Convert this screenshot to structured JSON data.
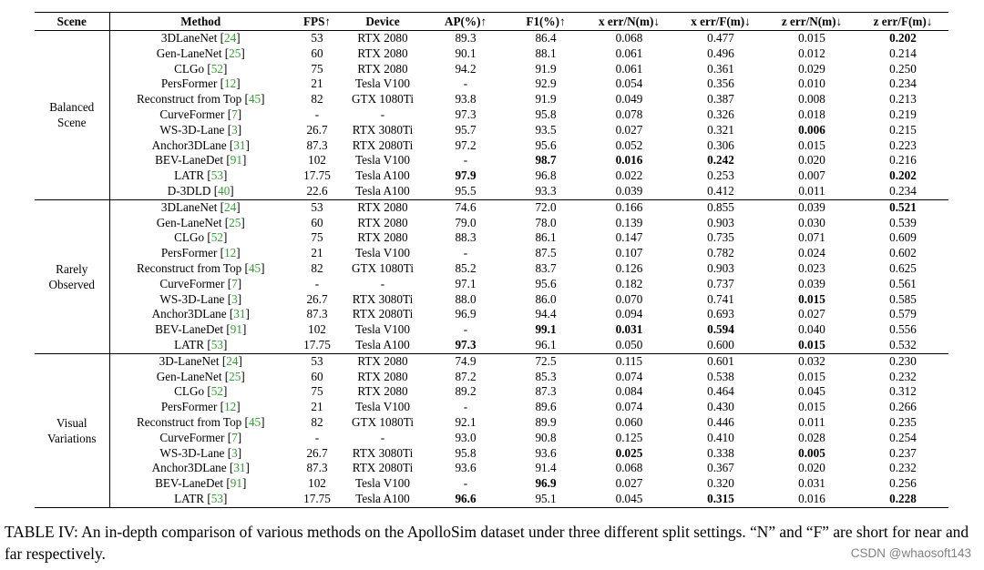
{
  "table": {
    "headers": [
      "Scene",
      "Method",
      "FPS↑",
      "Device",
      "AP(%)↑",
      "F1(%)↑",
      "x err/N(m)↓",
      "x err/F(m)↓",
      "z err/N(m)↓",
      "z err/F(m)↓"
    ],
    "bold_cells": "bold entries marked in rows via the 'bold' list of column indexes (2..9 of metric columns)",
    "groups": [
      {
        "scene": "Balanced\nScene",
        "rows": [
          {
            "method": "3DLaneNet",
            "ref": "24",
            "fps": "53",
            "device": "RTX 2080",
            "ap": "89.3",
            "f1": "86.4",
            "xn": "0.068",
            "xf": "0.477",
            "zn": "0.015",
            "zf": "0.202",
            "bold": [
              "zf"
            ]
          },
          {
            "method": "Gen-LaneNet",
            "ref": "25",
            "fps": "60",
            "device": "RTX 2080",
            "ap": "90.1",
            "f1": "88.1",
            "xn": "0.061",
            "xf": "0.496",
            "zn": "0.012",
            "zf": "0.214",
            "bold": []
          },
          {
            "method": "CLGo",
            "ref": "52",
            "fps": "75",
            "device": "RTX 2080",
            "ap": "94.2",
            "f1": "91.9",
            "xn": "0.061",
            "xf": "0.361",
            "zn": "0.029",
            "zf": "0.250",
            "bold": []
          },
          {
            "method": "PersFormer",
            "ref": "12",
            "fps": "21",
            "device": "Tesla V100",
            "ap": "-",
            "f1": "92.9",
            "xn": "0.054",
            "xf": "0.356",
            "zn": "0.010",
            "zf": "0.234",
            "bold": []
          },
          {
            "method": "Reconstruct from Top",
            "ref": "45",
            "fps": "82",
            "device": "GTX 1080Ti",
            "ap": "93.8",
            "f1": "91.9",
            "xn": "0.049",
            "xf": "0.387",
            "zn": "0.008",
            "zf": "0.213",
            "bold": []
          },
          {
            "method": "CurveFormer",
            "ref": "7",
            "fps": "-",
            "device": "-",
            "ap": "97.3",
            "f1": "95.8",
            "xn": "0.078",
            "xf": "0.326",
            "zn": "0.018",
            "zf": "0.219",
            "bold": []
          },
          {
            "method": "WS-3D-Lane",
            "ref": "3",
            "fps": "26.7",
            "device": "RTX 3080Ti",
            "ap": "95.7",
            "f1": "93.5",
            "xn": "0.027",
            "xf": "0.321",
            "zn": "0.006",
            "zf": "0.215",
            "bold": [
              "zn"
            ]
          },
          {
            "method": "Anchor3DLane",
            "ref": "31",
            "fps": "87.3",
            "device": "RTX 2080Ti",
            "ap": "97.2",
            "f1": "95.6",
            "xn": "0.052",
            "xf": "0.306",
            "zn": "0.015",
            "zf": "0.223",
            "bold": []
          },
          {
            "method": "BEV-LaneDet",
            "ref": "91",
            "fps": "102",
            "device": "Tesla V100",
            "ap": "-",
            "f1": "98.7",
            "xn": "0.016",
            "xf": "0.242",
            "zn": "0.020",
            "zf": "0.216",
            "bold": [
              "f1",
              "xn",
              "xf"
            ]
          },
          {
            "method": "LATR",
            "ref": "53",
            "fps": "17.75",
            "device": "Tesla A100",
            "ap": "97.9",
            "f1": "96.8",
            "xn": "0.022",
            "xf": "0.253",
            "zn": "0.007",
            "zf": "0.202",
            "bold": [
              "ap",
              "zf"
            ]
          },
          {
            "method": "D-3DLD",
            "ref": "40",
            "fps": "22.6",
            "device": "Tesla A100",
            "ap": "95.5",
            "f1": "93.3",
            "xn": "0.039",
            "xf": "0.412",
            "zn": "0.011",
            "zf": "0.234",
            "bold": []
          }
        ]
      },
      {
        "scene": "Rarely\nObserved",
        "rows": [
          {
            "method": "3DLaneNet",
            "ref": "24",
            "fps": "53",
            "device": "RTX 2080",
            "ap": "74.6",
            "f1": "72.0",
            "xn": "0.166",
            "xf": "0.855",
            "zn": "0.039",
            "zf": "0.521",
            "bold": [
              "zf"
            ]
          },
          {
            "method": "Gen-LaneNet",
            "ref": "25",
            "fps": "60",
            "device": "RTX 2080",
            "ap": "79.0",
            "f1": "78.0",
            "xn": "0.139",
            "xf": "0.903",
            "zn": "0.030",
            "zf": "0.539",
            "bold": []
          },
          {
            "method": "CLGo",
            "ref": "52",
            "fps": "75",
            "device": "RTX 2080",
            "ap": "88.3",
            "f1": "86.1",
            "xn": "0.147",
            "xf": "0.735",
            "zn": "0.071",
            "zf": "0.609",
            "bold": []
          },
          {
            "method": "PersFormer",
            "ref": "12",
            "fps": "21",
            "device": "Tesla V100",
            "ap": "-",
            "f1": "87.5",
            "xn": "0.107",
            "xf": "0.782",
            "zn": "0.024",
            "zf": "0.602",
            "bold": []
          },
          {
            "method": "Reconstruct from Top",
            "ref": "45",
            "fps": "82",
            "device": "GTX 1080Ti",
            "ap": "85.2",
            "f1": "83.7",
            "xn": "0.126",
            "xf": "0.903",
            "zn": "0.023",
            "zf": "0.625",
            "bold": []
          },
          {
            "method": "CurveFormer",
            "ref": "7",
            "fps": "-",
            "device": "-",
            "ap": "97.1",
            "f1": "95.6",
            "xn": "0.182",
            "xf": "0.737",
            "zn": "0.039",
            "zf": "0.561",
            "bold": []
          },
          {
            "method": "WS-3D-Lane",
            "ref": "3",
            "fps": "26.7",
            "device": "RTX 3080Ti",
            "ap": "88.0",
            "f1": "86.0",
            "xn": "0.070",
            "xf": "0.741",
            "zn": "0.015",
            "zf": "0.585",
            "bold": [
              "zn"
            ]
          },
          {
            "method": "Anchor3DLane",
            "ref": "31",
            "fps": "87.3",
            "device": "RTX 2080Ti",
            "ap": "96.9",
            "f1": "94.4",
            "xn": "0.094",
            "xf": "0.693",
            "zn": "0.027",
            "zf": "0.579",
            "bold": []
          },
          {
            "method": "BEV-LaneDet",
            "ref": "91",
            "fps": "102",
            "device": "Tesla V100",
            "ap": "-",
            "f1": "99.1",
            "xn": "0.031",
            "xf": "0.594",
            "zn": "0.040",
            "zf": "0.556",
            "bold": [
              "f1",
              "xn",
              "xf"
            ]
          },
          {
            "method": "LATR",
            "ref": "53",
            "fps": "17.75",
            "device": "Tesla A100",
            "ap": "97.3",
            "f1": "96.1",
            "xn": "0.050",
            "xf": "0.600",
            "zn": "0.015",
            "zf": "0.532",
            "bold": [
              "ap",
              "zn"
            ]
          }
        ]
      },
      {
        "scene": "Visual\nVariations",
        "rows": [
          {
            "method": "3D-LaneNet",
            "ref": "24",
            "fps": "53",
            "device": "RTX 2080",
            "ap": "74.9",
            "f1": "72.5",
            "xn": "0.115",
            "xf": "0.601",
            "zn": "0.032",
            "zf": "0.230",
            "bold": []
          },
          {
            "method": "Gen-LaneNet",
            "ref": "25",
            "fps": "60",
            "device": "RTX 2080",
            "ap": "87.2",
            "f1": "85.3",
            "xn": "0.074",
            "xf": "0.538",
            "zn": "0.015",
            "zf": "0.232",
            "bold": []
          },
          {
            "method": "CLGo",
            "ref": "52",
            "fps": "75",
            "device": "RTX 2080",
            "ap": "89.2",
            "f1": "87.3",
            "xn": "0.084",
            "xf": "0.464",
            "zn": "0.045",
            "zf": "0.312",
            "bold": []
          },
          {
            "method": "PersFormer",
            "ref": "12",
            "fps": "21",
            "device": "Tesla V100",
            "ap": "-",
            "f1": "89.6",
            "xn": "0.074",
            "xf": "0.430",
            "zn": "0.015",
            "zf": "0.266",
            "bold": []
          },
          {
            "method": "Reconstruct from Top",
            "ref": "45",
            "fps": "82",
            "device": "GTX 1080Ti",
            "ap": "92.1",
            "f1": "89.9",
            "xn": "0.060",
            "xf": "0.446",
            "zn": "0.011",
            "zf": "0.235",
            "bold": []
          },
          {
            "method": "CurveFormer",
            "ref": "7",
            "fps": "-",
            "device": "-",
            "ap": "93.0",
            "f1": "90.8",
            "xn": "0.125",
            "xf": "0.410",
            "zn": "0.028",
            "zf": "0.254",
            "bold": []
          },
          {
            "method": "WS-3D-Lane",
            "ref": "3",
            "fps": "26.7",
            "device": "RTX 3080Ti",
            "ap": "95.8",
            "f1": "93.6",
            "xn": "0.025",
            "xf": "0.338",
            "zn": "0.005",
            "zf": "0.237",
            "bold": [
              "xn",
              "zn"
            ]
          },
          {
            "method": "Anchor3DLane",
            "ref": "31",
            "fps": "87.3",
            "device": "RTX 2080Ti",
            "ap": "93.6",
            "f1": "91.4",
            "xn": "0.068",
            "xf": "0.367",
            "zn": "0.020",
            "zf": "0.232",
            "bold": []
          },
          {
            "method": "BEV-LaneDet",
            "ref": "91",
            "fps": "102",
            "device": "Tesla V100",
            "ap": "-",
            "f1": "96.9",
            "xn": "0.027",
            "xf": "0.320",
            "zn": "0.031",
            "zf": "0.256",
            "bold": [
              "f1"
            ]
          },
          {
            "method": "LATR",
            "ref": "53",
            "fps": "17.75",
            "device": "Tesla A100",
            "ap": "96.6",
            "f1": "95.1",
            "xn": "0.045",
            "xf": "0.315",
            "zn": "0.016",
            "zf": "0.228",
            "bold": [
              "ap",
              "xf",
              "zf"
            ]
          }
        ]
      }
    ]
  },
  "caption": "TABLE IV: An in-depth comparison of various methods on the ApolloSim dataset under three different split settings. “N” and “F” are short for near and far respectively.",
  "watermark": "CSDN @whaosoft143",
  "colors": {
    "reference_link": "#2e9e2e",
    "text": "#000000",
    "watermark": "#808080"
  }
}
